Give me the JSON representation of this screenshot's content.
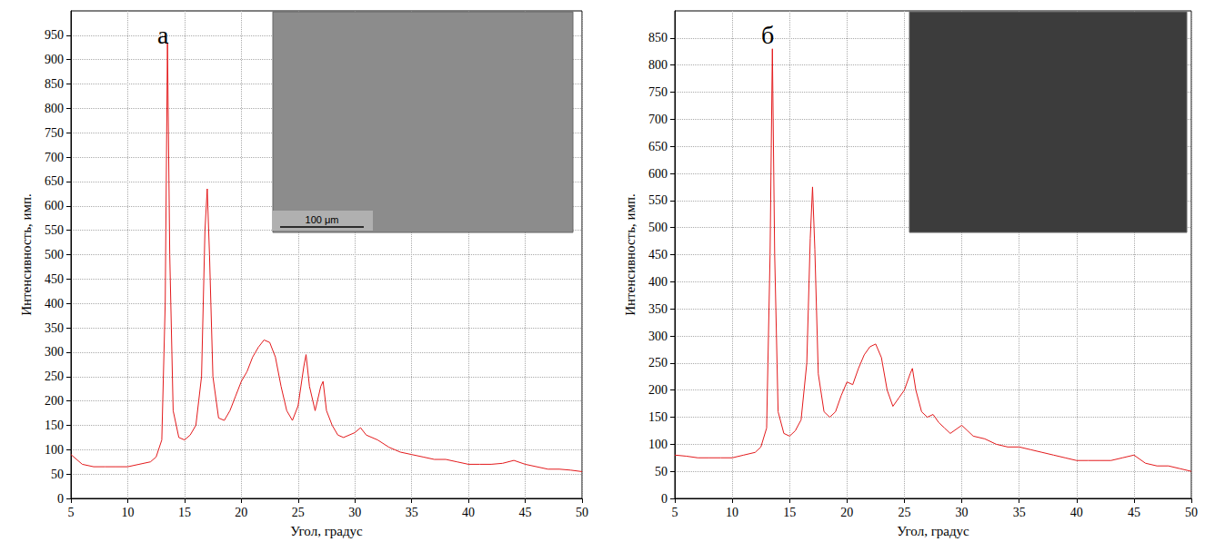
{
  "chart_data": [
    {
      "type": "line",
      "panel_label": "а",
      "scale_bar_label": "100 μm",
      "x_label": "Угол, градус",
      "y_label": "Интенсивность, имп.",
      "color": "#e31a1c",
      "grid": true,
      "xlim": [
        5,
        50
      ],
      "xticks": [
        5,
        10,
        15,
        20,
        25,
        30,
        35,
        40,
        45,
        50
      ],
      "ylim": [
        0,
        1000
      ],
      "yticks": [
        0,
        50,
        100,
        150,
        200,
        250,
        300,
        350,
        400,
        450,
        500,
        550,
        600,
        650,
        700,
        750,
        800,
        850,
        900,
        950
      ],
      "x": [
        5,
        6,
        7,
        8,
        9,
        10,
        11,
        12,
        12.5,
        13,
        13.3,
        13.5,
        13.7,
        14,
        14.5,
        15,
        15.5,
        16,
        16.5,
        16.8,
        17,
        17.2,
        17.5,
        18,
        18.5,
        19,
        19.5,
        20,
        20.5,
        21,
        21.5,
        22,
        22.5,
        23,
        23.5,
        24,
        24.5,
        25,
        25.5,
        25.7,
        26,
        26.5,
        27,
        27.2,
        27.5,
        28,
        28.5,
        29,
        30,
        30.5,
        31,
        32,
        33,
        34,
        35,
        36,
        37,
        38,
        39,
        40,
        41,
        42,
        43,
        44,
        45,
        46,
        47,
        48,
        49,
        50
      ],
      "values": [
        90,
        70,
        65,
        65,
        65,
        65,
        70,
        75,
        85,
        120,
        400,
        935,
        500,
        180,
        125,
        120,
        130,
        150,
        250,
        550,
        635,
        500,
        250,
        165,
        160,
        180,
        210,
        240,
        260,
        290,
        310,
        325,
        320,
        290,
        230,
        180,
        160,
        190,
        270,
        295,
        230,
        180,
        230,
        240,
        180,
        150,
        130,
        125,
        135,
        145,
        130,
        120,
        105,
        95,
        90,
        85,
        80,
        80,
        75,
        70,
        70,
        70,
        72,
        78,
        70,
        65,
        60,
        60,
        58,
        55
      ]
    },
    {
      "type": "line",
      "panel_label": "б",
      "x_label": "Угол, градус",
      "y_label": "Интенсивность, имп.",
      "color": "#e31a1c",
      "grid": true,
      "xlim": [
        5,
        50
      ],
      "xticks": [
        5,
        10,
        15,
        20,
        25,
        30,
        35,
        40,
        45,
        50
      ],
      "ylim": [
        0,
        900
      ],
      "yticks": [
        0,
        50,
        100,
        150,
        200,
        250,
        300,
        350,
        400,
        450,
        500,
        550,
        600,
        650,
        700,
        750,
        800,
        850
      ],
      "x": [
        5,
        6,
        7,
        8,
        9,
        10,
        11,
        12,
        12.5,
        13,
        13.3,
        13.5,
        13.7,
        14,
        14.5,
        15,
        15.5,
        16,
        16.5,
        16.8,
        17,
        17.2,
        17.5,
        18,
        18.5,
        19,
        19.5,
        20,
        20.5,
        21,
        21.5,
        22,
        22.5,
        23,
        23.5,
        24,
        24.5,
        25,
        25.5,
        25.7,
        26,
        26.5,
        27,
        27.5,
        28,
        28.5,
        29,
        30,
        30.5,
        31,
        32,
        33,
        34,
        35,
        36,
        37,
        38,
        39,
        40,
        41,
        42,
        43,
        44,
        45,
        46,
        47,
        48,
        49,
        50
      ],
      "values": [
        80,
        78,
        75,
        75,
        75,
        75,
        80,
        85,
        95,
        130,
        450,
        830,
        450,
        160,
        120,
        115,
        125,
        145,
        250,
        480,
        575,
        460,
        230,
        160,
        150,
        160,
        190,
        215,
        210,
        240,
        265,
        280,
        285,
        260,
        200,
        170,
        185,
        200,
        230,
        240,
        200,
        160,
        150,
        155,
        140,
        130,
        120,
        135,
        125,
        115,
        110,
        100,
        95,
        95,
        90,
        85,
        80,
        75,
        70,
        70,
        70,
        70,
        75,
        80,
        65,
        60,
        60,
        55,
        50
      ]
    }
  ]
}
